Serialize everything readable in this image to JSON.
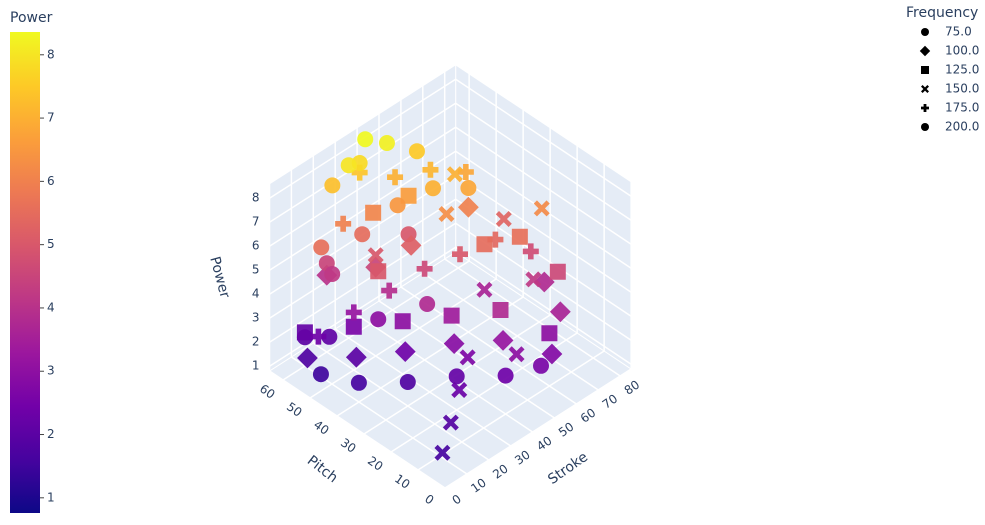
{
  "chart_data": {
    "type": "scatter3d",
    "x_label": "Stroke",
    "y_label": "Pitch",
    "z_label": "Power",
    "xlim": [
      0,
      85
    ],
    "ylim": [
      0,
      65
    ],
    "zlim": [
      0.8,
      8.6
    ],
    "xticks": [
      0,
      10,
      20,
      30,
      40,
      50,
      60,
      70,
      80
    ],
    "yticks": [
      0,
      10,
      20,
      30,
      40,
      50,
      60
    ],
    "zticks": [
      1,
      2,
      3,
      4,
      5,
      6,
      7,
      8
    ],
    "colorbar": {
      "title": "Power",
      "clim": [
        0.76,
        8.36
      ],
      "ticks": [
        1,
        2,
        3,
        4,
        5,
        6,
        7,
        8
      ]
    },
    "colorscale": [
      "#0d0887",
      "#46039f",
      "#7201a8",
      "#9c179e",
      "#bd3786",
      "#d8576b",
      "#ed7953",
      "#fb9f3a",
      "#fdca26",
      "#f0f921"
    ],
    "legend_title": "Frequency",
    "series": [
      {
        "name": "75.0",
        "symbol": "circle",
        "x": [
          5,
          10,
          20,
          30,
          40,
          50,
          15,
          25,
          35,
          10,
          45,
          20
        ],
        "y": [
          50,
          40,
          30,
          20,
          10,
          5,
          55,
          45,
          35,
          60,
          50,
          58
        ],
        "values": [
          1.5,
          1.6,
          1.8,
          2.2,
          2.4,
          2.6,
          2.1,
          3.0,
          3.8,
          2.0,
          5.0,
          4.2
        ]
      },
      {
        "name": "100.0",
        "symbol": "diamond",
        "x": [
          5,
          15,
          25,
          35,
          45,
          55,
          65,
          70,
          30,
          40,
          20,
          60
        ],
        "y": [
          55,
          45,
          35,
          25,
          15,
          5,
          10,
          20,
          50,
          45,
          60,
          40
        ],
        "values": [
          1.8,
          2.0,
          2.4,
          2.9,
          3.2,
          2.8,
          3.6,
          3.8,
          4.5,
          5.2,
          4.0,
          6.0
        ]
      },
      {
        "name": "125.0",
        "symbol": "square",
        "x": [
          10,
          20,
          30,
          40,
          50,
          60,
          35,
          45,
          25,
          55,
          65,
          70
        ],
        "y": [
          60,
          50,
          40,
          30,
          20,
          10,
          55,
          50,
          45,
          30,
          25,
          15
        ],
        "values": [
          2.2,
          2.6,
          3.0,
          3.4,
          3.8,
          3.0,
          6.1,
          6.6,
          5.0,
          5.5,
          5.6,
          4.6
        ]
      },
      {
        "name": "150.0",
        "symbol": "x",
        "x": [
          5,
          15,
          25,
          35,
          45,
          55,
          65,
          70,
          75,
          30,
          50,
          60
        ],
        "y": [
          5,
          10,
          15,
          20,
          10,
          30,
          20,
          35,
          25,
          50,
          40,
          45
        ],
        "values": [
          1.6,
          1.9,
          2.3,
          2.7,
          3.0,
          3.6,
          4.2,
          5.3,
          6.2,
          5.0,
          6.3,
          7.0
        ]
      },
      {
        "name": "175.0",
        "symbol": "cross",
        "x": [
          10,
          20,
          30,
          40,
          50,
          60,
          70,
          45,
          55,
          65,
          35,
          25
        ],
        "y": [
          55,
          50,
          45,
          40,
          35,
          30,
          25,
          55,
          50,
          45,
          60,
          58
        ],
        "values": [
          2.4,
          3.2,
          3.9,
          4.6,
          5.0,
          5.4,
          4.7,
          7.0,
          7.1,
          6.8,
          7.4,
          6.0
        ]
      },
      {
        "name": "200.0",
        "symbol": "circle",
        "x": [
          20,
          30,
          40,
          50,
          60,
          35,
          45,
          25,
          15,
          55,
          40,
          30
        ],
        "y": [
          60,
          55,
          50,
          45,
          40,
          60,
          58,
          62,
          58,
          55,
          62,
          60
        ],
        "values": [
          4.5,
          5.5,
          6.5,
          7.0,
          6.8,
          7.8,
          8.2,
          7.3,
          5.6,
          7.5,
          8.35,
          8.0
        ]
      }
    ]
  }
}
